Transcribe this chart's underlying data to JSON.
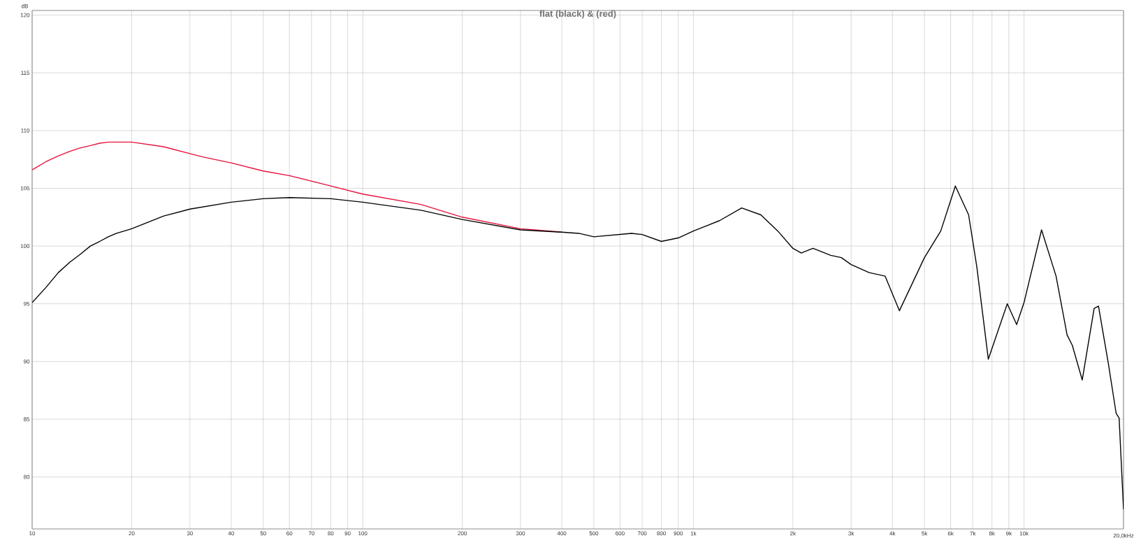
{
  "chart_data": {
    "type": "line",
    "title": "flat (black) & (red)",
    "ylabel": "dB",
    "log": "x",
    "grid": true,
    "xlim": [
      10,
      20000
    ],
    "ylim": [
      75.5,
      120.4
    ],
    "xticks": [
      10,
      20,
      30,
      40,
      50,
      60,
      70,
      80,
      90,
      100,
      200,
      300,
      400,
      500,
      600,
      700,
      800,
      900,
      {
        "value": 1000,
        "label": "1k"
      },
      {
        "value": 2000,
        "label": "2k"
      },
      {
        "value": 3000,
        "label": "3k"
      },
      {
        "value": 4000,
        "label": "4k"
      },
      {
        "value": 5000,
        "label": "5k"
      },
      {
        "value": 6000,
        "label": "6k"
      },
      {
        "value": 7000,
        "label": "7k"
      },
      {
        "value": 8000,
        "label": "8k"
      },
      {
        "value": 9000,
        "label": "9k"
      },
      {
        "value": 10000,
        "label": "10k"
      },
      {
        "value": 20000,
        "label": null
      }
    ],
    "xlabel": "20,0kHz",
    "yticks": [
      80,
      85,
      90,
      95,
      100,
      105,
      110,
      115,
      120
    ],
    "series": [
      {
        "color": "#e8103c",
        "x": [
          10,
          11,
          12,
          13,
          14,
          15,
          16,
          17,
          18,
          20,
          25,
          30,
          33,
          40,
          50,
          60,
          80,
          100,
          150,
          200,
          300,
          400
        ],
        "values": [
          106.6,
          107.3,
          107.8,
          108.2,
          108.5,
          108.7,
          108.9,
          109.0,
          109.0,
          109.0,
          108.6,
          108.0,
          107.7,
          107.2,
          106.5,
          106.1,
          105.2,
          104.5,
          103.6,
          102.5,
          101.5,
          101.2
        ]
      },
      {
        "color": "#000000",
        "x": [
          10,
          11,
          12,
          13,
          14,
          15,
          16,
          17,
          18,
          19,
          20,
          25,
          30,
          40,
          50,
          60,
          80,
          100,
          150,
          200,
          300,
          400,
          450,
          500,
          650,
          700,
          800,
          900,
          1000,
          1200,
          1400,
          1600,
          1800,
          2000,
          2120,
          2300,
          2600,
          2800,
          3000,
          3400,
          3800,
          4200,
          5000,
          5600,
          6200,
          6800,
          7200,
          7800,
          8900,
          9500,
          10000,
          11300,
          12500,
          13500,
          14000,
          15000,
          16300,
          16800,
          18000,
          19000,
          19400,
          20000
        ],
        "values": [
          95.1,
          96.4,
          97.7,
          98.6,
          99.3,
          100.0,
          100.4,
          100.8,
          101.1,
          101.3,
          101.5,
          102.6,
          103.2,
          103.8,
          104.1,
          104.2,
          104.1,
          103.8,
          103.1,
          102.3,
          101.4,
          101.2,
          101.1,
          100.8,
          101.1,
          101.0,
          100.4,
          100.7,
          101.3,
          102.2,
          103.3,
          102.7,
          101.3,
          99.8,
          99.4,
          99.8,
          99.2,
          99.0,
          98.4,
          97.7,
          97.4,
          94.4,
          99.0,
          101.3,
          105.2,
          102.7,
          98.2,
          90.2,
          95.0,
          93.2,
          95.1,
          101.4,
          97.4,
          92.3,
          91.4,
          88.4,
          94.6,
          94.8,
          89.8,
          85.5,
          85.1,
          77.2
        ]
      }
    ]
  }
}
